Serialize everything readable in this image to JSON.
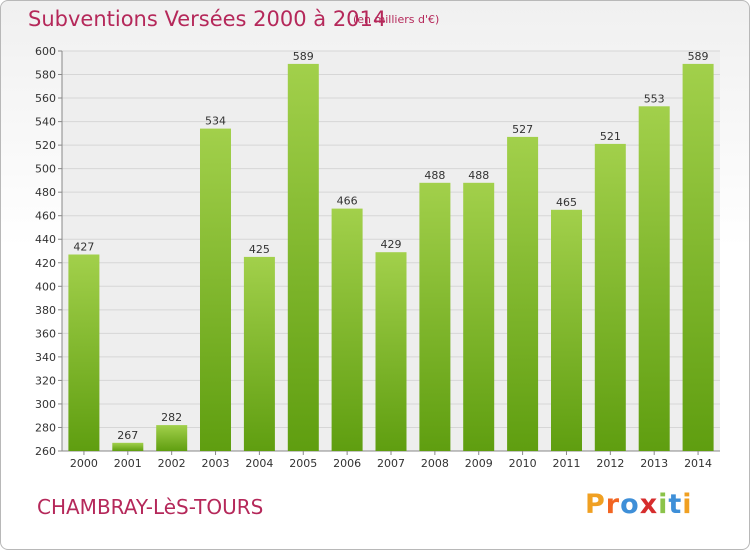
{
  "header": {
    "title": "Subventions Versées 2000 à 2014",
    "unit_note": "(en milliers d'€)"
  },
  "footer": {
    "commune": "CHAMBRAY-LèS-TOURS",
    "brand": "Proxiti",
    "brand_colors": [
      "#f0a022",
      "#f26522",
      "#3e8fd8",
      "#d62d2d",
      "#8bc34a",
      "#3e8fd8",
      "#f0a022"
    ]
  },
  "colors": {
    "title": "#b5285a",
    "bar_top": "#a2d04b",
    "bar_bottom": "#5f9e10",
    "grid": "#d6d6d6",
    "plot_bg": "#eeeeee"
  },
  "chart_data": {
    "type": "bar",
    "title": "Subventions Versées 2000 à 2014",
    "subtitle": "(en milliers d'€)",
    "categories": [
      "2000",
      "2001",
      "2002",
      "2003",
      "2004",
      "2005",
      "2006",
      "2007",
      "2008",
      "2009",
      "2010",
      "2011",
      "2012",
      "2013",
      "2014"
    ],
    "values": [
      427,
      267,
      282,
      534,
      425,
      589,
      466,
      429,
      488,
      488,
      527,
      465,
      521,
      553,
      589
    ],
    "ylim": [
      260,
      600
    ],
    "yticks": [
      260,
      280,
      300,
      320,
      340,
      360,
      380,
      400,
      420,
      440,
      460,
      480,
      500,
      520,
      540,
      560,
      580,
      600
    ],
    "grid": true,
    "xlabel": "",
    "ylabel": ""
  }
}
